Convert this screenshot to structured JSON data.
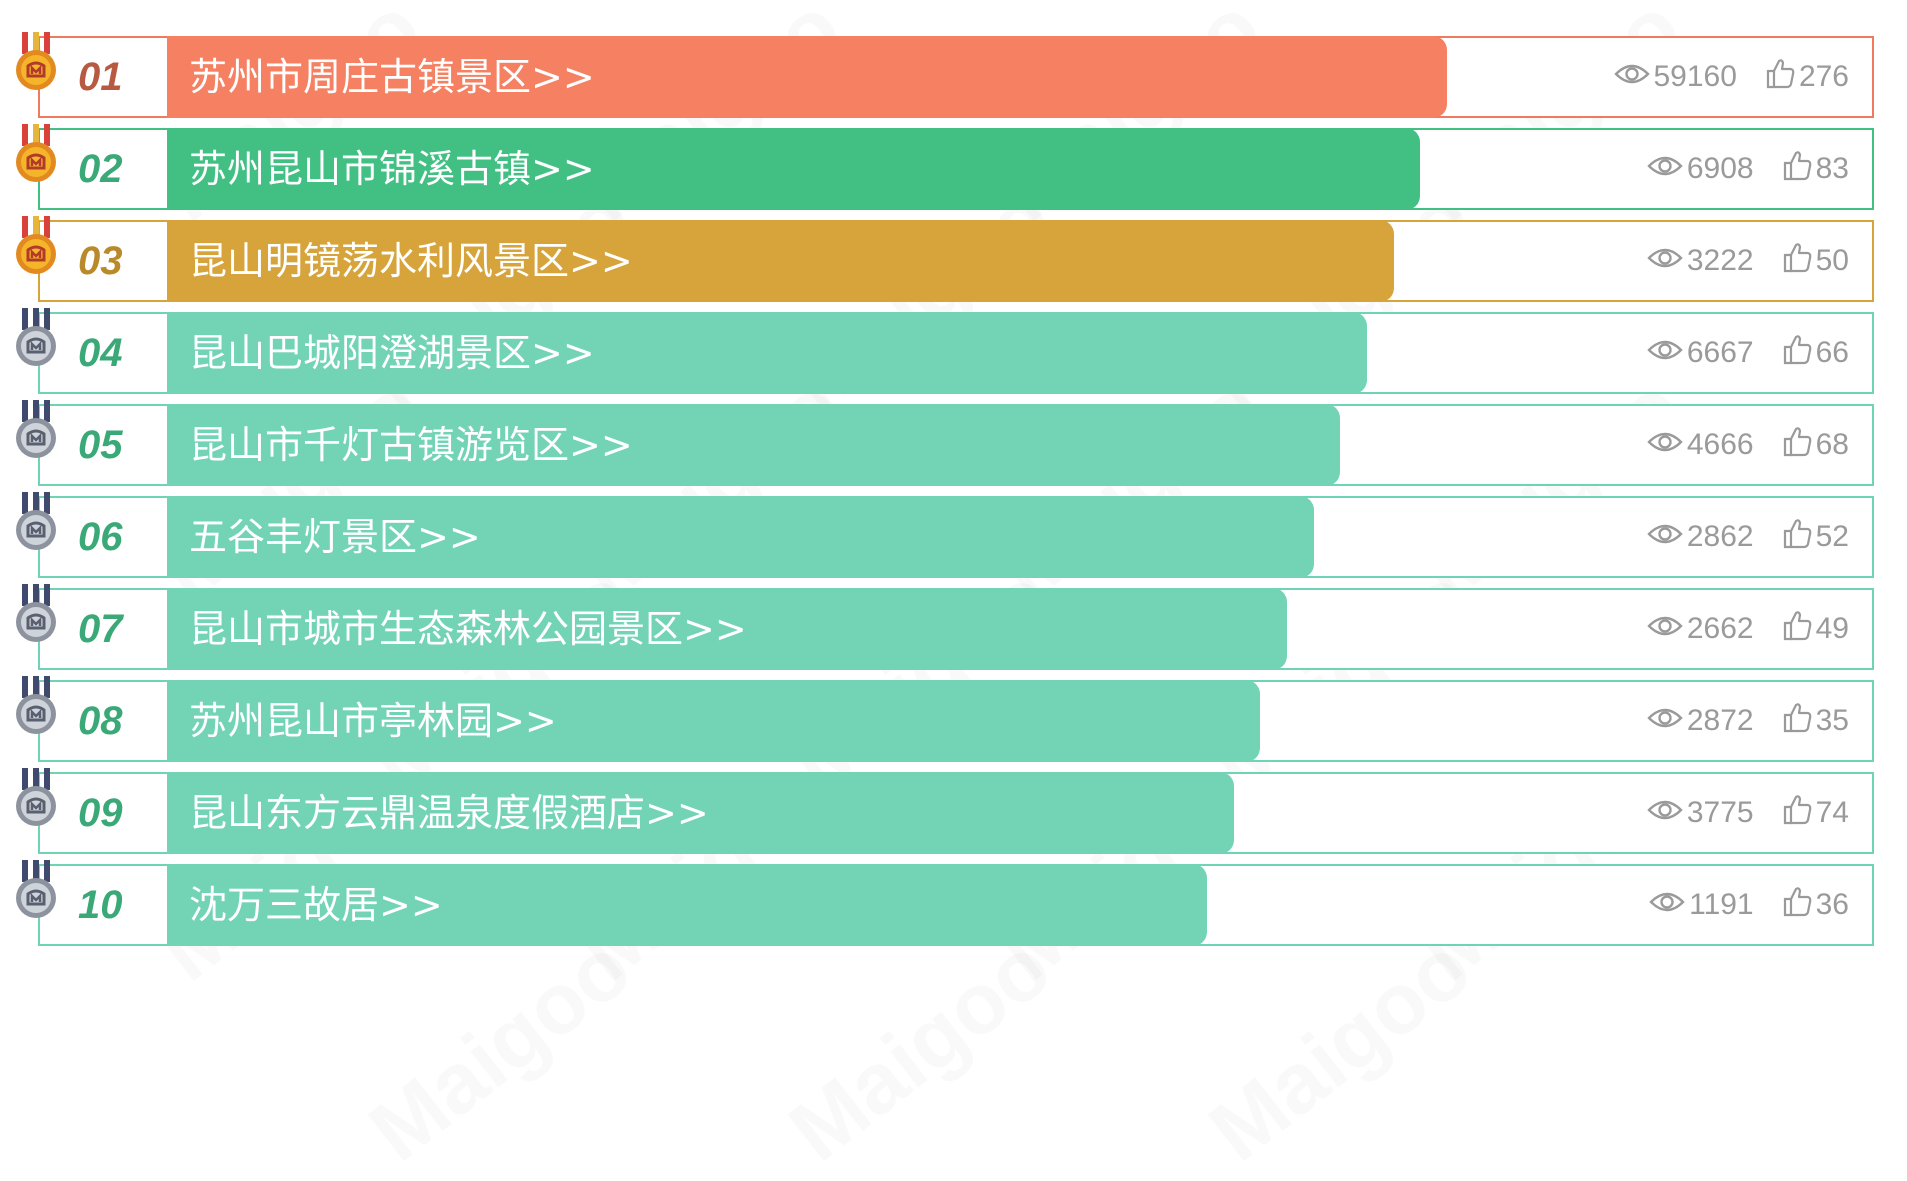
{
  "watermark_text": "Maigoo",
  "colors": {
    "gold_bar": "#f58062",
    "silver_bar": "#42c084",
    "bronze_bar": "#d6a43a",
    "default_bar": "#73d4b5",
    "gold_border": "#ef7a5e",
    "silver_border": "#42c084",
    "bronze_border": "#d6a43a",
    "default_border": "#6ed4b5",
    "stats_text": "#9a9a9a"
  },
  "rankings": [
    {
      "rank": "01",
      "name": "苏州市周庄古镇景区>>",
      "views": "59160",
      "likes": "276",
      "tier": "gold",
      "bar_fraction": 0.72
    },
    {
      "rank": "02",
      "name": "苏州昆山市锦溪古镇>>",
      "views": "6908",
      "likes": "83",
      "tier": "silver",
      "bar_fraction": 0.705
    },
    {
      "rank": "03",
      "name": "昆山明镜荡水利风景区>>",
      "views": "3222",
      "likes": "50",
      "tier": "bronze",
      "bar_fraction": 0.69
    },
    {
      "rank": "04",
      "name": "昆山巴城阳澄湖景区>>",
      "views": "6667",
      "likes": "66",
      "tier": "default",
      "bar_fraction": 0.675
    },
    {
      "rank": "05",
      "name": "昆山市千灯古镇游览区>>",
      "views": "4666",
      "likes": "68",
      "tier": "default",
      "bar_fraction": 0.66
    },
    {
      "rank": "06",
      "name": "五谷丰灯景区>>",
      "views": "2862",
      "likes": "52",
      "tier": "default",
      "bar_fraction": 0.645
    },
    {
      "rank": "07",
      "name": "昆山市城市生态森林公园景区>>",
      "views": "2662",
      "likes": "49",
      "tier": "default",
      "bar_fraction": 0.63
    },
    {
      "rank": "08",
      "name": "苏州昆山市亭林园>>",
      "views": "2872",
      "likes": "35",
      "tier": "default",
      "bar_fraction": 0.615
    },
    {
      "rank": "09",
      "name": "昆山东方云鼎温泉度假酒店>>",
      "views": "3775",
      "likes": "74",
      "tier": "default",
      "bar_fraction": 0.6
    },
    {
      "rank": "10",
      "name": "沈万三故居>>",
      "views": "1191",
      "likes": "36",
      "tier": "default",
      "bar_fraction": 0.585
    }
  ]
}
